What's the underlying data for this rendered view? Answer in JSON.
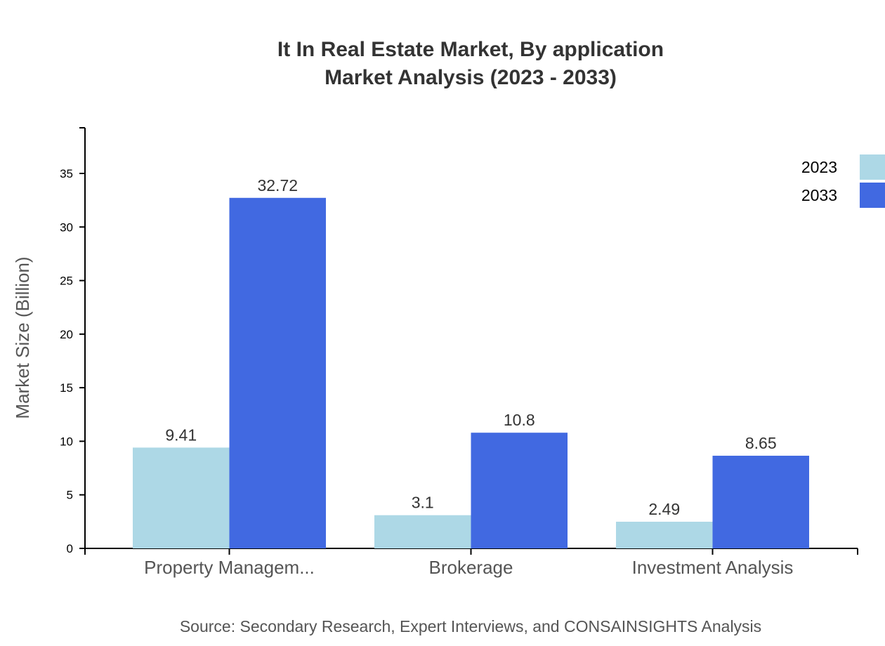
{
  "chart_data": {
    "type": "bar",
    "title": [
      "It In Real Estate Market, By application",
      "Market Analysis (2023 - 2033)"
    ],
    "ylabel": "Market Size (Billion)",
    "xlabel": "",
    "categories": [
      "Property Managem...",
      "Brokerage",
      "Investment Analysis"
    ],
    "series": [
      {
        "name": "2023",
        "color": "#add8e6",
        "values": [
          9.41,
          3.1,
          2.49
        ]
      },
      {
        "name": "2033",
        "color": "#4169e1",
        "values": [
          32.72,
          10.8,
          8.65
        ]
      }
    ],
    "ylim": [
      0,
      39.26
    ],
    "yticks": [
      0,
      5,
      10,
      15,
      20,
      25,
      30,
      35
    ],
    "grid": false,
    "legend": "top-right",
    "source": "Source: Secondary Research, Expert Interviews, and CONSAINSIGHTS Analysis"
  }
}
